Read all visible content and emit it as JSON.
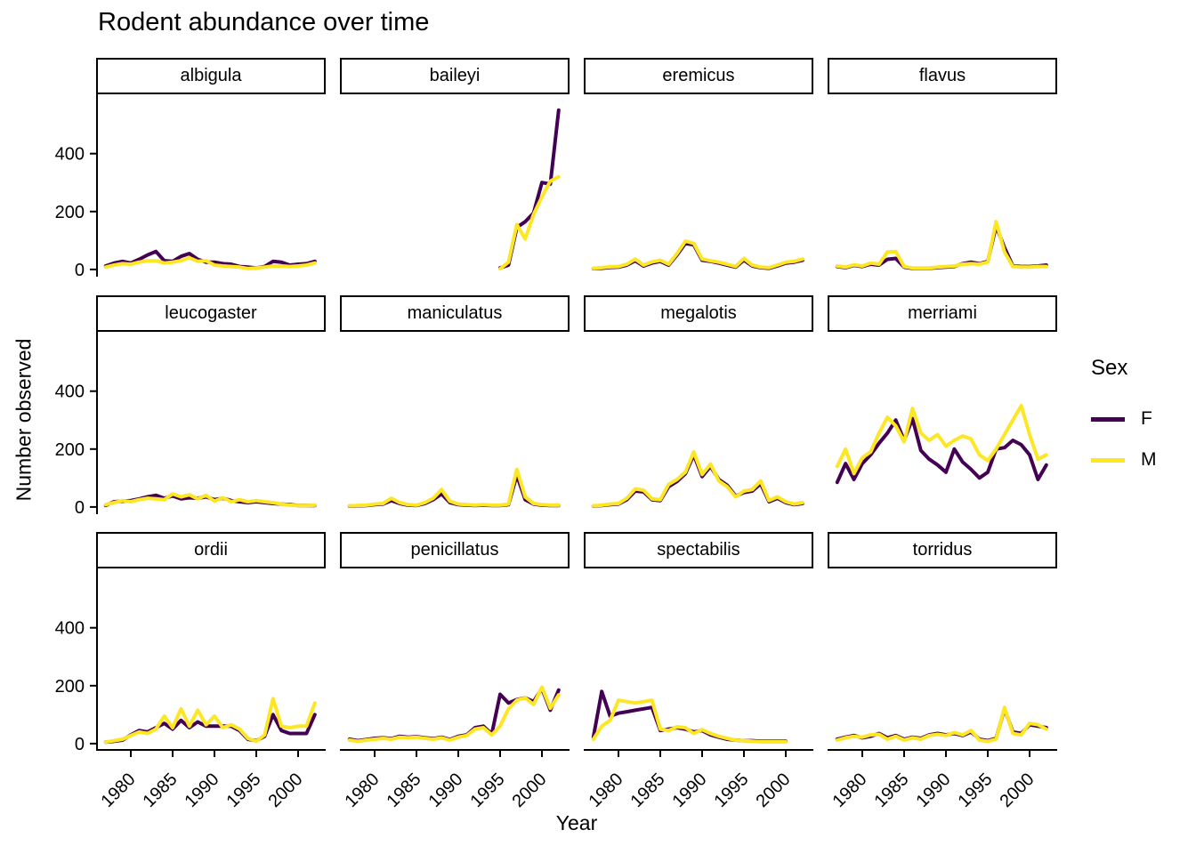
{
  "title": "Rodent abundance over time",
  "axes": {
    "x_label": "Year",
    "y_label": "Number observed",
    "x_ticks": [
      1980,
      1985,
      1990,
      1995,
      2000
    ],
    "y_ticks": [
      0,
      200,
      400
    ]
  },
  "legend": {
    "title": "Sex",
    "entries": [
      {
        "label": "F",
        "color": "#440154"
      },
      {
        "label": "M",
        "color": "#FDE725"
      }
    ]
  },
  "chart_data": {
    "type": "line",
    "title": "Rodent abundance over time",
    "xlabel": "Year",
    "ylabel": "Number observed",
    "grid": false,
    "legend_position": "right",
    "facet_layout": {
      "rows": 3,
      "cols": 4
    },
    "xlim": [
      1975.8,
      2003.2
    ],
    "ylim": [
      -25,
      605
    ],
    "x_ticks": [
      1980,
      1985,
      1990,
      1995,
      2000
    ],
    "y_ticks": [
      0,
      200,
      400
    ],
    "series_colors": {
      "F": "#440154",
      "M": "#FDE725"
    },
    "x_years": [
      1977,
      1978,
      1979,
      1980,
      1981,
      1982,
      1983,
      1984,
      1985,
      1986,
      1987,
      1988,
      1989,
      1990,
      1991,
      1992,
      1993,
      1994,
      1995,
      1996,
      1997,
      1998,
      1999,
      2000,
      2001,
      2002
    ],
    "facets": [
      {
        "name": "albigula",
        "series": [
          {
            "name": "F",
            "values": [
              12,
              22,
              28,
              22,
              35,
              50,
              62,
              30,
              28,
              45,
              55,
              35,
              25,
              25,
              20,
              18,
              10,
              8,
              5,
              10,
              28,
              25,
              15,
              18,
              20,
              28
            ]
          },
          {
            "name": "M",
            "values": [
              8,
              15,
              20,
              18,
              25,
              30,
              30,
              22,
              25,
              30,
              40,
              28,
              30,
              15,
              12,
              10,
              8,
              3,
              5,
              8,
              12,
              12,
              10,
              12,
              15,
              22
            ]
          }
        ]
      },
      {
        "name": "baileyi",
        "series": [
          {
            "name": "F",
            "values": [
              null,
              null,
              null,
              null,
              null,
              null,
              null,
              null,
              null,
              null,
              null,
              null,
              null,
              null,
              null,
              null,
              null,
              null,
              5,
              15,
              145,
              165,
              195,
              300,
              295,
              550
            ]
          },
          {
            "name": "M",
            "values": [
              null,
              null,
              null,
              null,
              null,
              null,
              null,
              null,
              null,
              null,
              null,
              null,
              null,
              null,
              null,
              null,
              null,
              null,
              2,
              25,
              155,
              105,
              190,
              250,
              305,
              320
            ]
          }
        ]
      },
      {
        "name": "eremicus",
        "series": [
          {
            "name": "F",
            "values": [
              3,
              4,
              7,
              8,
              15,
              30,
              12,
              22,
              28,
              15,
              50,
              90,
              85,
              32,
              28,
              22,
              15,
              8,
              32,
              12,
              6,
              4,
              12,
              22,
              25,
              32
            ]
          },
          {
            "name": "M",
            "values": [
              4,
              6,
              9,
              10,
              18,
              36,
              15,
              26,
              32,
              18,
              55,
              98,
              90,
              36,
              30,
              25,
              18,
              10,
              38,
              15,
              8,
              6,
              15,
              25,
              28,
              36
            ]
          }
        ]
      },
      {
        "name": "flavus",
        "series": [
          {
            "name": "F",
            "values": [
              10,
              6,
              14,
              10,
              18,
              15,
              35,
              38,
              8,
              4,
              4,
              4,
              6,
              8,
              10,
              20,
              25,
              20,
              28,
              150,
              75,
              12,
              10,
              10,
              12,
              15
            ]
          },
          {
            "name": "M",
            "values": [
              12,
              8,
              16,
              12,
              22,
              18,
              60,
              62,
              10,
              5,
              5,
              5,
              8,
              10,
              12,
              18,
              20,
              18,
              25,
              165,
              60,
              10,
              8,
              8,
              10,
              10
            ]
          }
        ]
      },
      {
        "name": "leucogaster",
        "series": [
          {
            "name": "F",
            "values": [
              5,
              18,
              20,
              22,
              28,
              35,
              40,
              30,
              38,
              28,
              32,
              30,
              35,
              25,
              30,
              22,
              18,
              15,
              18,
              15,
              12,
              10,
              8,
              5,
              5,
              5
            ]
          },
          {
            "name": "M",
            "values": [
              8,
              15,
              22,
              18,
              25,
              30,
              28,
              25,
              45,
              35,
              42,
              28,
              40,
              20,
              32,
              18,
              25,
              18,
              22,
              18,
              15,
              10,
              6,
              5,
              5,
              6
            ]
          }
        ]
      },
      {
        "name": "maniculatus",
        "series": [
          {
            "name": "F",
            "values": [
              3,
              4,
              5,
              8,
              10,
              22,
              12,
              6,
              5,
              12,
              25,
              45,
              15,
              8,
              6,
              5,
              6,
              5,
              5,
              8,
              110,
              25,
              10,
              6,
              5,
              5
            ]
          },
          {
            "name": "M",
            "values": [
              4,
              5,
              6,
              10,
              12,
              30,
              15,
              8,
              6,
              15,
              30,
              60,
              20,
              10,
              8,
              6,
              8,
              6,
              6,
              10,
              130,
              35,
              12,
              8,
              6,
              6
            ]
          }
        ]
      },
      {
        "name": "megalotis",
        "series": [
          {
            "name": "F",
            "values": [
              3,
              5,
              8,
              10,
              25,
              55,
              52,
              25,
              22,
              70,
              88,
              115,
              180,
              105,
              140,
              95,
              75,
              38,
              50,
              55,
              80,
              18,
              30,
              15,
              8,
              12
            ]
          },
          {
            "name": "M",
            "values": [
              4,
              6,
              10,
              12,
              30,
              62,
              58,
              28,
              25,
              78,
              95,
              120,
              190,
              112,
              148,
              90,
              70,
              35,
              55,
              60,
              90,
              22,
              35,
              18,
              10,
              15
            ]
          }
        ]
      },
      {
        "name": "merriami",
        "series": [
          {
            "name": "F",
            "values": [
              85,
              150,
              95,
              150,
              180,
              220,
              255,
              300,
              230,
              305,
              195,
              165,
              145,
              120,
              200,
              155,
              130,
              100,
              120,
              200,
              205,
              230,
              215,
              180,
              95,
              145
            ]
          },
          {
            "name": "M",
            "values": [
              140,
              200,
              115,
              170,
              190,
              255,
              310,
              280,
              225,
              340,
              255,
              230,
              250,
              210,
              230,
              245,
              235,
              180,
              160,
              200,
              250,
              300,
              350,
              250,
              165,
              180
            ]
          }
        ]
      },
      {
        "name": "ordii",
        "series": [
          {
            "name": "F",
            "values": [
              5,
              8,
              12,
              30,
              45,
              40,
              55,
              70,
              50,
              80,
              55,
              75,
              60,
              60,
              60,
              60,
              45,
              15,
              10,
              25,
              100,
              45,
              35,
              35,
              35,
              100
            ]
          },
          {
            "name": "M",
            "values": [
              5,
              10,
              15,
              28,
              40,
              35,
              50,
              95,
              55,
              120,
              60,
              115,
              65,
              95,
              55,
              65,
              50,
              18,
              8,
              30,
              155,
              60,
              55,
              60,
              60,
              140
            ]
          }
        ]
      },
      {
        "name": "penicillatus",
        "series": [
          {
            "name": "F",
            "values": [
              15,
              10,
              14,
              18,
              20,
              17,
              25,
              22,
              24,
              20,
              17,
              22,
              14,
              25,
              30,
              55,
              60,
              33,
              170,
              140,
              152,
              158,
              145,
              190,
              115,
              185
            ]
          },
          {
            "name": "M",
            "values": [
              12,
              8,
              12,
              15,
              18,
              15,
              22,
              20,
              22,
              18,
              15,
              20,
              12,
              22,
              28,
              50,
              55,
              30,
              60,
              120,
              150,
              158,
              135,
              195,
              122,
              168
            ]
          }
        ]
      },
      {
        "name": "spectabilis",
        "series": [
          {
            "name": "F",
            "values": [
              22,
              180,
              95,
              105,
              110,
              115,
              120,
              125,
              45,
              50,
              55,
              50,
              40,
              45,
              30,
              22,
              15,
              12,
              10,
              10,
              8,
              8,
              8,
              8,
              null,
              null
            ]
          },
          {
            "name": "M",
            "values": [
              15,
              60,
              80,
              150,
              145,
              140,
              145,
              150,
              50,
              45,
              58,
              55,
              35,
              48,
              35,
              25,
              18,
              12,
              10,
              8,
              6,
              6,
              6,
              6,
              null,
              null
            ]
          }
        ]
      },
      {
        "name": "torridus",
        "series": [
          {
            "name": "F",
            "values": [
              15,
              22,
              28,
              20,
              25,
              35,
              20,
              28,
              15,
              22,
              18,
              30,
              35,
              30,
              35,
              28,
              40,
              15,
              10,
              18,
              120,
              40,
              35,
              65,
              60,
              55
            ]
          },
          {
            "name": "M",
            "values": [
              12,
              20,
              25,
              22,
              30,
              32,
              15,
              25,
              12,
              20,
              15,
              28,
              32,
              28,
              38,
              30,
              45,
              12,
              8,
              15,
              125,
              35,
              30,
              70,
              65,
              50
            ]
          }
        ]
      }
    ]
  }
}
